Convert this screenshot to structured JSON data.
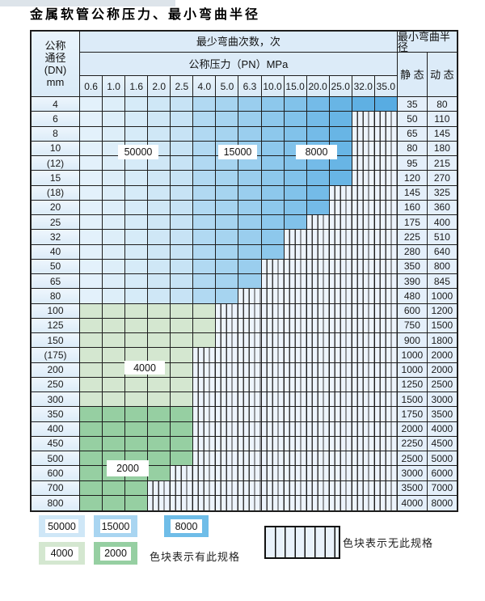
{
  "title": "金属软管公称压力、最小弯曲半径",
  "table": {
    "dn_header_lines": [
      "公称",
      "通径",
      "(DN)",
      "mm"
    ],
    "cycles_header": "最少弯曲次数，次",
    "pressure_header": "公称压力（PN）MPa",
    "radius_header": "最小弯曲半径",
    "static_header": "静 态",
    "dynamic_header": "动 态",
    "pressure_columns": [
      "0.6",
      "1.0",
      "1.6",
      "2.0",
      "2.5",
      "4.0",
      "5.0",
      "6.3",
      "10.0",
      "15.0",
      "20.0",
      "25.0",
      "32.0",
      "35.0"
    ],
    "rows": [
      {
        "dn": "4",
        "colored_cols": 14,
        "zone": "blue",
        "static": "35",
        "dynamic": "80"
      },
      {
        "dn": "6",
        "colored_cols": 12,
        "zone": "blue",
        "static": "50",
        "dynamic": "110"
      },
      {
        "dn": "8",
        "colored_cols": 12,
        "zone": "blue",
        "static": "65",
        "dynamic": "145"
      },
      {
        "dn": "10",
        "colored_cols": 12,
        "zone": "blue",
        "static": "80",
        "dynamic": "180"
      },
      {
        "dn": "(12)",
        "colored_cols": 12,
        "zone": "blue",
        "static": "95",
        "dynamic": "215"
      },
      {
        "dn": "15",
        "colored_cols": 12,
        "zone": "blue",
        "static": "120",
        "dynamic": "270"
      },
      {
        "dn": "(18)",
        "colored_cols": 11,
        "zone": "blue",
        "static": "145",
        "dynamic": "325"
      },
      {
        "dn": "20",
        "colored_cols": 11,
        "zone": "blue",
        "static": "160",
        "dynamic": "360"
      },
      {
        "dn": "25",
        "colored_cols": 10,
        "zone": "blue",
        "static": "175",
        "dynamic": "400"
      },
      {
        "dn": "32",
        "colored_cols": 9,
        "zone": "blue",
        "static": "225",
        "dynamic": "510"
      },
      {
        "dn": "40",
        "colored_cols": 9,
        "zone": "blue",
        "static": "280",
        "dynamic": "640"
      },
      {
        "dn": "50",
        "colored_cols": 8,
        "zone": "blue",
        "static": "350",
        "dynamic": "800"
      },
      {
        "dn": "65",
        "colored_cols": 8,
        "zone": "blue",
        "static": "390",
        "dynamic": "845"
      },
      {
        "dn": "80",
        "colored_cols": 7,
        "zone": "blue",
        "static": "480",
        "dynamic": "1000"
      },
      {
        "dn": "100",
        "colored_cols": 6,
        "zone": "green_4000",
        "static": "600",
        "dynamic": "1200"
      },
      {
        "dn": "125",
        "colored_cols": 6,
        "zone": "green_4000",
        "static": "750",
        "dynamic": "1500"
      },
      {
        "dn": "150",
        "colored_cols": 6,
        "zone": "green_4000",
        "static": "900",
        "dynamic": "1800"
      },
      {
        "dn": "(175)",
        "colored_cols": 5,
        "zone": "green_4000",
        "static": "1000",
        "dynamic": "2000"
      },
      {
        "dn": "200",
        "colored_cols": 5,
        "zone": "green_4000",
        "static": "1000",
        "dynamic": "2000"
      },
      {
        "dn": "250",
        "colored_cols": 5,
        "zone": "green_4000",
        "static": "1250",
        "dynamic": "2500"
      },
      {
        "dn": "300",
        "colored_cols": 5,
        "zone": "green_4000",
        "static": "1500",
        "dynamic": "3000"
      },
      {
        "dn": "350",
        "colored_cols": 5,
        "zone": "green_2000",
        "static": "1750",
        "dynamic": "3500"
      },
      {
        "dn": "400",
        "colored_cols": 5,
        "zone": "green_2000",
        "static": "2000",
        "dynamic": "4000"
      },
      {
        "dn": "450",
        "colored_cols": 5,
        "zone": "green_2000",
        "static": "2250",
        "dynamic": "4500"
      },
      {
        "dn": "500",
        "colored_cols": 5,
        "zone": "green_2000",
        "static": "2500",
        "dynamic": "5000"
      },
      {
        "dn": "600",
        "colored_cols": 4,
        "zone": "green_2000",
        "static": "3000",
        "dynamic": "6000"
      },
      {
        "dn": "700",
        "colored_cols": 3,
        "zone": "green_2000",
        "static": "3500",
        "dynamic": "7000"
      },
      {
        "dn": "800",
        "colored_cols": 3,
        "zone": "green_2000",
        "static": "4000",
        "dynamic": "8000"
      }
    ]
  },
  "cycle_labels": [
    {
      "text": "50000"
    },
    {
      "text": "15000"
    },
    {
      "text": "8000"
    },
    {
      "text": "4000"
    },
    {
      "text": "2000"
    }
  ],
  "legend": {
    "swatches": [
      {
        "text": "50000",
        "color": "#cfe7f7"
      },
      {
        "text": "15000",
        "color": "#a9d5f1"
      },
      {
        "text": "8000",
        "color": "#6fbde8"
      },
      {
        "text": "4000",
        "color": "#d4e7d0"
      },
      {
        "text": "2000",
        "color": "#96cfa2"
      }
    ],
    "has_spec_label": "色块表示有此规格",
    "no_spec_label": "色块表示无此规格"
  },
  "colors": {
    "blue_cols": [
      "#e3f1fb",
      "#ddeef9",
      "#d6ebf8",
      "#cfe7f6",
      "#c7e3f5",
      "#b1d9f2",
      "#a6d4f0",
      "#9aceee",
      "#8dc8ec",
      "#81c2ea",
      "#74bbe8",
      "#68b5e5",
      "#5fb0e3",
      "#58ace2"
    ],
    "green_4000": "#d4e7d0",
    "green_2000": "#96cfa2",
    "hatch_bg": "#edf4fc",
    "grid_line": "#1d1d1d",
    "header_bg": "#dcebf8"
  }
}
